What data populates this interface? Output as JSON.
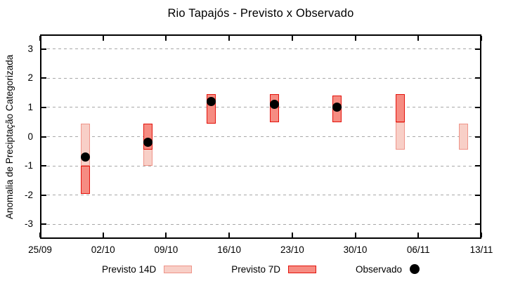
{
  "title": "Rio Tapajós - Previsto x Observado",
  "axes": {
    "ylabel": "Anomalia de Preciptação Categorizada",
    "xlabel": ""
  },
  "legend": {
    "items": [
      {
        "label": "Previsto 14D",
        "marker": "box-light-pink"
      },
      {
        "label": "Previsto 7D",
        "marker": "box-red"
      },
      {
        "label": "Observado",
        "marker": "black-dot"
      }
    ]
  },
  "chart_data": {
    "type": "bar",
    "subtype": "range-bars-with-observed-points",
    "title": "Rio Tapajós - Previsto x Observado",
    "xlabel": "",
    "ylabel": "Anomalia de Preciptação Categorizada",
    "ylim": [
      -3.5,
      3.5
    ],
    "yticks": [
      3,
      2,
      1,
      0,
      -1,
      -2,
      -3
    ],
    "xticks": [
      {
        "label": "25/09",
        "day": 0
      },
      {
        "label": "02/10",
        "day": 7
      },
      {
        "label": "09/10",
        "day": 14
      },
      {
        "label": "16/10",
        "day": 21
      },
      {
        "label": "23/10",
        "day": 28
      },
      {
        "label": "30/10",
        "day": 35
      },
      {
        "label": "06/11",
        "day": 42
      },
      {
        "label": "13/11",
        "day": 49
      }
    ],
    "x_span_days": 49,
    "grid": {
      "show": true,
      "style": "dashed",
      "color": "#a8a8a8"
    },
    "legend_position": "bottom",
    "series": [
      {
        "name": "Previsto 14D",
        "type": "range-bar",
        "fill": "#f8cfc7",
        "border": "#ef9489",
        "bars": [
          {
            "date": "30/09",
            "day": 5,
            "low": -1.0,
            "high": 0.45
          },
          {
            "date": "07/10",
            "day": 12,
            "low": -1.0,
            "high": 0.45
          },
          {
            "date": "04/11",
            "day": 40,
            "low": -0.45,
            "high": 0.5
          },
          {
            "date": "11/11",
            "day": 47,
            "low": -0.45,
            "high": 0.45
          }
        ]
      },
      {
        "name": "Previsto 7D",
        "type": "range-bar",
        "fill": "#f68c82",
        "border": "#e3120b",
        "bars": [
          {
            "date": "30/09",
            "day": 5,
            "low": -1.95,
            "high": -1.0
          },
          {
            "date": "07/10",
            "day": 12,
            "low": -0.45,
            "high": 0.45
          },
          {
            "date": "14/10",
            "day": 19,
            "low": 0.45,
            "high": 1.45
          },
          {
            "date": "21/10",
            "day": 26,
            "low": 0.5,
            "high": 1.45
          },
          {
            "date": "28/10",
            "day": 33,
            "low": 0.5,
            "high": 1.4
          },
          {
            "date": "04/11",
            "day": 40,
            "low": 0.5,
            "high": 1.45
          }
        ]
      },
      {
        "name": "Observado",
        "type": "point",
        "color": "#000000",
        "points": [
          {
            "date": "30/09",
            "day": 5,
            "value": -0.7
          },
          {
            "date": "07/10",
            "day": 12,
            "value": -0.2
          },
          {
            "date": "14/10",
            "day": 19,
            "value": 1.2
          },
          {
            "date": "21/10",
            "day": 26,
            "value": 1.1
          },
          {
            "date": "28/10",
            "day": 33,
            "value": 1.0
          }
        ]
      }
    ]
  }
}
